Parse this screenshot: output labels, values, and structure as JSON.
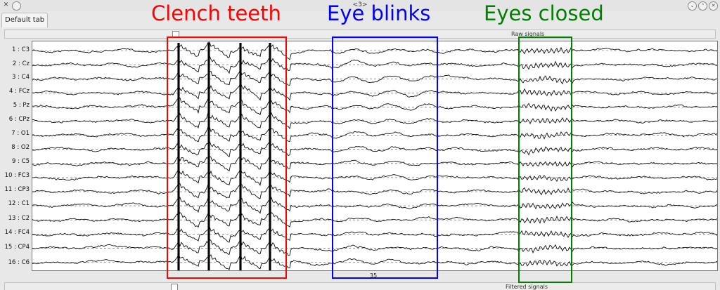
{
  "window": {
    "title": "<3>"
  },
  "tabs": [
    {
      "label": "Default tab"
    }
  ],
  "panels": {
    "raw": "Raw signals",
    "filtered": "Filtered signals"
  },
  "channels": [
    {
      "label": "1 : C3"
    },
    {
      "label": "2 : Cz"
    },
    {
      "label": "3 : C4"
    },
    {
      "label": "4 : FCz"
    },
    {
      "label": "5 : Pz"
    },
    {
      "label": "6 : CPz"
    },
    {
      "label": "7 : O1"
    },
    {
      "label": "8 : O2"
    },
    {
      "label": "9 : C5"
    },
    {
      "label": "10 : FC3"
    },
    {
      "label": "11 : CP3"
    },
    {
      "label": "12 : C1"
    },
    {
      "label": "13 : C2"
    },
    {
      "label": "14 : FC4"
    },
    {
      "label": "15 : CP4"
    },
    {
      "label": "16 : C6"
    }
  ],
  "time_axis": {
    "tick": "35"
  },
  "annotations": [
    {
      "text": "Clench teeth",
      "color": "#ff0000"
    },
    {
      "text": "Eye blinks",
      "color": "#0000ff"
    },
    {
      "text": "Eyes closed",
      "color": "#008000"
    }
  ]
}
